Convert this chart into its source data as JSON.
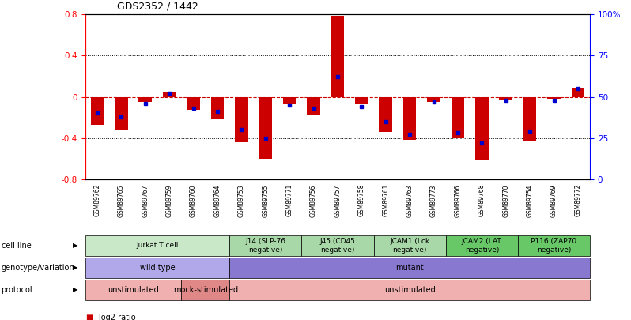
{
  "title": "GDS2352 / 1442",
  "samples": [
    "GSM89762",
    "GSM89765",
    "GSM89767",
    "GSM89759",
    "GSM89760",
    "GSM89764",
    "GSM89753",
    "GSM89755",
    "GSM89771",
    "GSM89756",
    "GSM89757",
    "GSM89758",
    "GSM89761",
    "GSM89763",
    "GSM89773",
    "GSM89766",
    "GSM89768",
    "GSM89770",
    "GSM89754",
    "GSM89769",
    "GSM89772"
  ],
  "log2_ratio": [
    -0.27,
    -0.32,
    -0.05,
    0.05,
    -0.13,
    -0.21,
    -0.44,
    -0.6,
    -0.07,
    -0.17,
    0.79,
    -0.07,
    -0.34,
    -0.42,
    -0.05,
    -0.4,
    -0.62,
    -0.03,
    -0.43,
    -0.02,
    0.08
  ],
  "percentile_rank": [
    40,
    38,
    46,
    52,
    43,
    41,
    30,
    25,
    45,
    43,
    62,
    44,
    35,
    27,
    47,
    28,
    22,
    48,
    29,
    48,
    55
  ],
  "ylim": [
    -0.8,
    0.8
  ],
  "cell_line_groups": [
    {
      "label": "Jurkat T cell",
      "start": 0,
      "end": 6,
      "color": "#c8e8c8"
    },
    {
      "label": "J14 (SLP-76\nnegative)",
      "start": 6,
      "end": 9,
      "color": "#a8d8a8"
    },
    {
      "label": "J45 (CD45\nnegative)",
      "start": 9,
      "end": 12,
      "color": "#a8d8a8"
    },
    {
      "label": "JCAM1 (Lck\nnegative)",
      "start": 12,
      "end": 15,
      "color": "#a8d8a8"
    },
    {
      "label": "JCAM2 (LAT\nnegative)",
      "start": 15,
      "end": 18,
      "color": "#68c868"
    },
    {
      "label": "P116 (ZAP70\nnegative)",
      "start": 18,
      "end": 21,
      "color": "#68c868"
    }
  ],
  "genotype_groups": [
    {
      "label": "wild type",
      "start": 0,
      "end": 6,
      "color": "#b0a8e8"
    },
    {
      "label": "mutant",
      "start": 6,
      "end": 21,
      "color": "#8878d0"
    }
  ],
  "protocol_groups": [
    {
      "label": "unstimulated",
      "start": 0,
      "end": 4,
      "color": "#f0b0b0"
    },
    {
      "label": "mock-stimulated",
      "start": 4,
      "end": 6,
      "color": "#e08888"
    },
    {
      "label": "unstimulated",
      "start": 6,
      "end": 21,
      "color": "#f0b0b0"
    }
  ],
  "row_labels": [
    "cell line",
    "genotype/variation",
    "protocol"
  ],
  "bar_color": "#cc0000",
  "dot_color": "#0000cc",
  "hline_color": "#cc0000",
  "background_color": "#ffffff"
}
